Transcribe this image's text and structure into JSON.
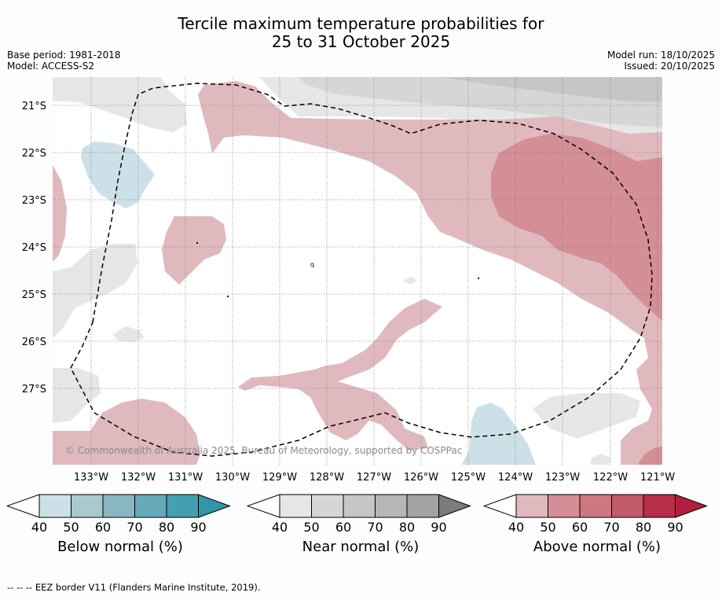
{
  "title": {
    "line1": "Tercile maximum temperature probabilities for",
    "line2": "25 to 31 October 2025"
  },
  "meta": {
    "base_period": "Base period: 1981-2018",
    "model": "Model: ACCESS-S2",
    "model_run": "Model run: 18/10/2025",
    "issued": "Issued: 20/10/2025"
  },
  "map": {
    "lat_labels": [
      "21°S",
      "22°S",
      "23°S",
      "24°S",
      "25°S",
      "26°S",
      "27°S"
    ],
    "lon_labels": [
      "133°W",
      "132°W",
      "131°W",
      "130°W",
      "129°W",
      "128°W",
      "127°W",
      "126°W",
      "125°W",
      "124°W",
      "123°W",
      "122°W",
      "121°W"
    ],
    "copyright": "© Commonwealth of Australia 2025, Bureau of Meteorology, supported by COSPPac",
    "stray_label": "q"
  },
  "colorbars": [
    {
      "label": "Below normal (%)",
      "ticks": [
        "40",
        "50",
        "60",
        "70",
        "80",
        "90"
      ],
      "colors": [
        "#cbe1e7",
        "#a9c9d0",
        "#89b6c1",
        "#66a9b8",
        "#449fb0",
        "#2f97a8"
      ]
    },
    {
      "label": "Near normal (%)",
      "ticks": [
        "40",
        "50",
        "60",
        "70",
        "80",
        "90"
      ],
      "colors": [
        "#e6e6e6",
        "#d6d6d6",
        "#c6c6c6",
        "#b6b6b6",
        "#a3a3a3",
        "#7b7b7b"
      ]
    },
    {
      "label": "Above normal (%)",
      "ticks": [
        "40",
        "50",
        "60",
        "70",
        "80",
        "90"
      ],
      "colors": [
        "#e0b9be",
        "#d48e96",
        "#cd7880",
        "#c35a67",
        "#b82d47",
        "#b0203e"
      ]
    }
  ],
  "colors": {
    "above_40": "#e0b9be",
    "above_50": "#d48e96",
    "near_40": "#e6e6e6",
    "near_50": "#d6d6d6",
    "near_60": "#c6c6c6",
    "below_40": "#cbe1e7"
  },
  "footer": "--  --  -- EEZ border V11 (Flanders Marine Institute, 2019)."
}
